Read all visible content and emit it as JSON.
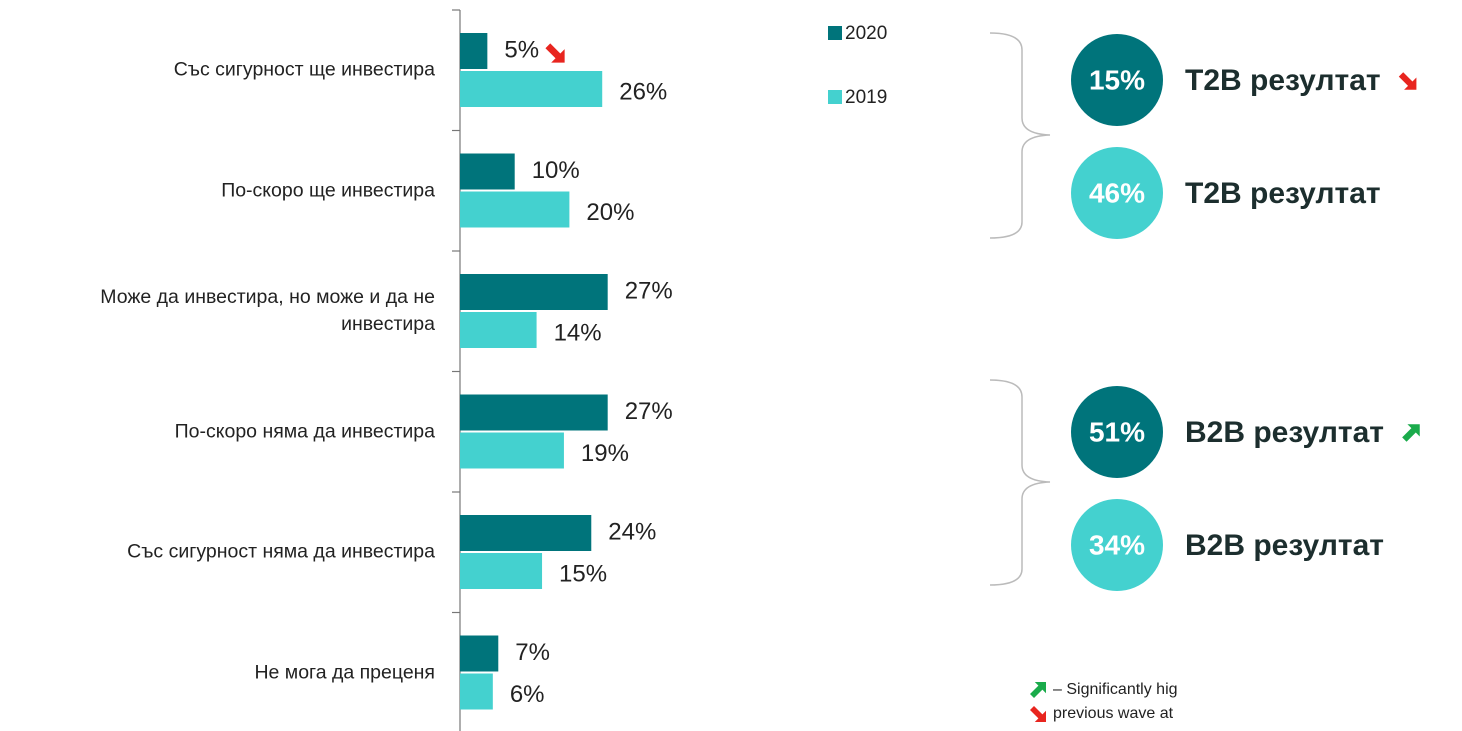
{
  "chart_data": {
    "type": "bar",
    "orientation": "horizontal",
    "categories": [
      "Със сигурност ще инвестира",
      "По-скоро ще инвестира",
      "Може да инвестира, но може и да не инвестира",
      "По-скоро няма да инвестира",
      "Със сигурност няма да инвестира",
      "Не мога да преценя"
    ],
    "series": [
      {
        "name": "2020",
        "color": "#00747b",
        "values": [
          5,
          10,
          27,
          27,
          24,
          7
        ],
        "value_labels": [
          "5%",
          "10%",
          "27%",
          "27%",
          "24%",
          "7%"
        ],
        "significance": [
          "down",
          null,
          null,
          null,
          null,
          null
        ]
      },
      {
        "name": "2019",
        "color": "#44d1cf",
        "values": [
          26,
          20,
          14,
          19,
          15,
          6
        ],
        "value_labels": [
          "26%",
          "20%",
          "14%",
          "19%",
          "15%",
          "6%"
        ]
      }
    ],
    "xlim": [
      0,
      100
    ],
    "summaries": [
      {
        "value": 15,
        "label": "15%",
        "text": "T2B резултат",
        "color": "#00747b",
        "significance": "down"
      },
      {
        "value": 46,
        "label": "46%",
        "text": "T2B резултат",
        "color": "#44d1cf"
      },
      {
        "value": 51,
        "label": "51%",
        "text": "B2B резултат",
        "color": "#00747b",
        "significance": "up"
      },
      {
        "value": 34,
        "label": "34%",
        "text": "B2B резултат",
        "color": "#44d1cf"
      }
    ],
    "significance_colors": {
      "up": "#1aab4b",
      "down": "#e8251f"
    },
    "note": [
      {
        "text": "– Significantly hig",
        "significance": "up"
      },
      {
        "text": "previous wave at",
        "significance": "down"
      }
    ]
  }
}
